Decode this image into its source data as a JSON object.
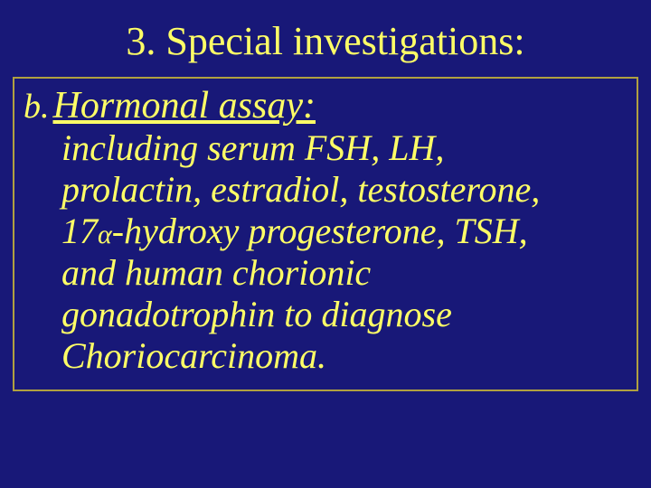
{
  "slide": {
    "background_color": "#181878",
    "text_color": "#ffff66",
    "border_color": "#b0a040",
    "title": "3. Special investigations:",
    "title_fontsize": 44,
    "item_label": "b.",
    "item_heading": "Hormonal assay:",
    "heading_fontsize": 42,
    "body_fontsize": 40,
    "body_line1": "including serum FSH, LH,",
    "body_line2": "prolactin, estradiol, testosterone,",
    "body_line3_pre": "17",
    "body_line3_alpha": "α",
    "body_line3_post": "-hydroxy progesterone, TSH,",
    "body_line4": "and human chorionic",
    "body_line5": "gonadotrophin to diagnose",
    "body_line6": "Choriocarcinoma.",
    "font_family": "Georgia, Times New Roman, serif",
    "font_style": "italic"
  }
}
